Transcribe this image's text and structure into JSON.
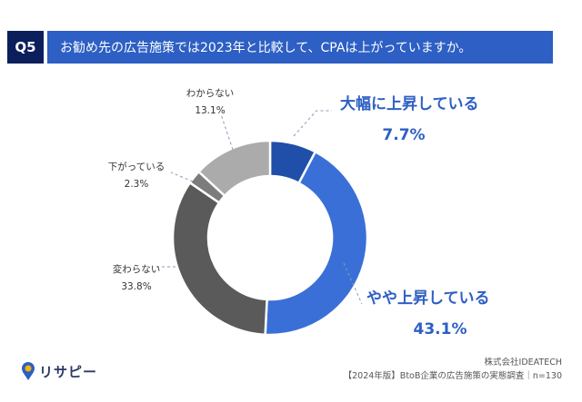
{
  "header": {
    "question_no": "Q5",
    "question_text": "お勧め先の広告施策では2023年と比較して、CPAは上がっていますか。"
  },
  "chart_data": {
    "type": "pie",
    "donut": true,
    "categories": [
      "大幅に上昇している",
      "やや上昇している",
      "変わらない",
      "下がっている",
      "わからない"
    ],
    "values": [
      7.7,
      43.1,
      33.8,
      2.3,
      13.1
    ],
    "value_labels": [
      "7.7%",
      "43.1%",
      "33.8%",
      "2.3%",
      "13.1%"
    ],
    "colors": [
      "#1f4fa8",
      "#3a6fd8",
      "#5a5a5a",
      "#7c7c7c",
      "#ababab"
    ],
    "start": "top",
    "direction": "clockwise"
  },
  "logo": {
    "name": "リサピー"
  },
  "footer": {
    "company": "株式会社IDEATECH",
    "source": "【2024年版】BtoB企業の広告施策の実態調査｜n=130"
  }
}
